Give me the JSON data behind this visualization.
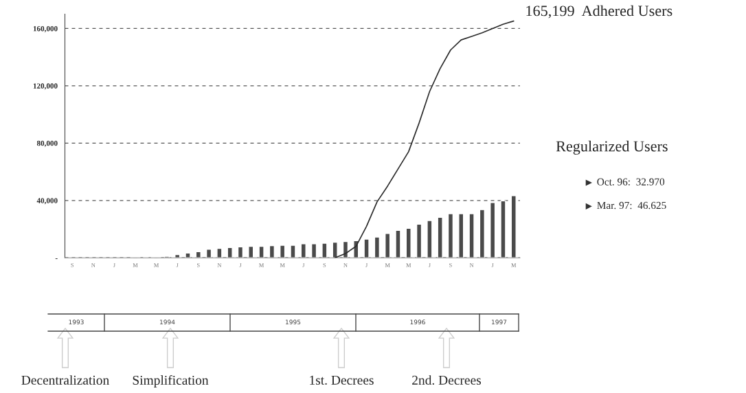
{
  "chart_data": {
    "type": "bar",
    "categories": [
      "S",
      null,
      "N",
      null,
      "J",
      null,
      "M",
      null,
      "M",
      null,
      "J",
      null,
      "S",
      null,
      "N",
      null,
      "J",
      null,
      "M",
      null,
      "M",
      null,
      "J",
      null,
      "S",
      null,
      "N",
      null,
      "J",
      null,
      "M",
      null,
      "M",
      null,
      "J",
      null,
      "S",
      null,
      "N",
      null,
      "J",
      null,
      "M"
    ],
    "series": [
      {
        "color": "#4a4a4a",
        "values": [
          null,
          null,
          null,
          null,
          null,
          null,
          400,
          600,
          700,
          1000,
          2200,
          3300,
          4300,
          6000,
          6500,
          7200,
          7600,
          8000,
          8000,
          8500,
          8700,
          8700,
          9800,
          9800,
          10200,
          10900,
          11300,
          12000,
          13000,
          14500,
          17000,
          19100,
          20600,
          23400,
          26000,
          28200,
          30800,
          30800,
          30800,
          33600,
          38600,
          39700,
          43400
        ]
      },
      {
        "type": "line",
        "color": "#2a2a2a",
        "values": [
          null,
          null,
          null,
          null,
          null,
          null,
          null,
          null,
          null,
          null,
          null,
          null,
          null,
          null,
          null,
          null,
          null,
          null,
          null,
          null,
          null,
          null,
          null,
          null,
          null,
          0,
          3000,
          8000,
          22000,
          39000,
          50000,
          62000,
          74000,
          94000,
          116000,
          132000,
          145000,
          152000,
          154500,
          157000,
          160000,
          163000,
          165199
        ]
      }
    ],
    "ylim": [
      0,
      170000
    ],
    "yticks": [
      {
        "value": 0,
        "label": "-"
      },
      {
        "value": 40000,
        "label": "40,000"
      },
      {
        "value": 80000,
        "label": "80,000"
      },
      {
        "value": 120000,
        "label": "120,000"
      },
      {
        "value": 160000,
        "label": "160,000"
      }
    ],
    "grid": "y",
    "annotations": [
      "165,199  Adhered Users",
      "Regularized Users",
      "Oct. 96:  32.970",
      "Mar. 97:  46.625",
      "1993",
      "1994",
      "1995",
      "1996",
      "1997",
      "Decentralization",
      "Simplification",
      "1st. Decrees",
      "2nd. Decrees"
    ]
  }
}
